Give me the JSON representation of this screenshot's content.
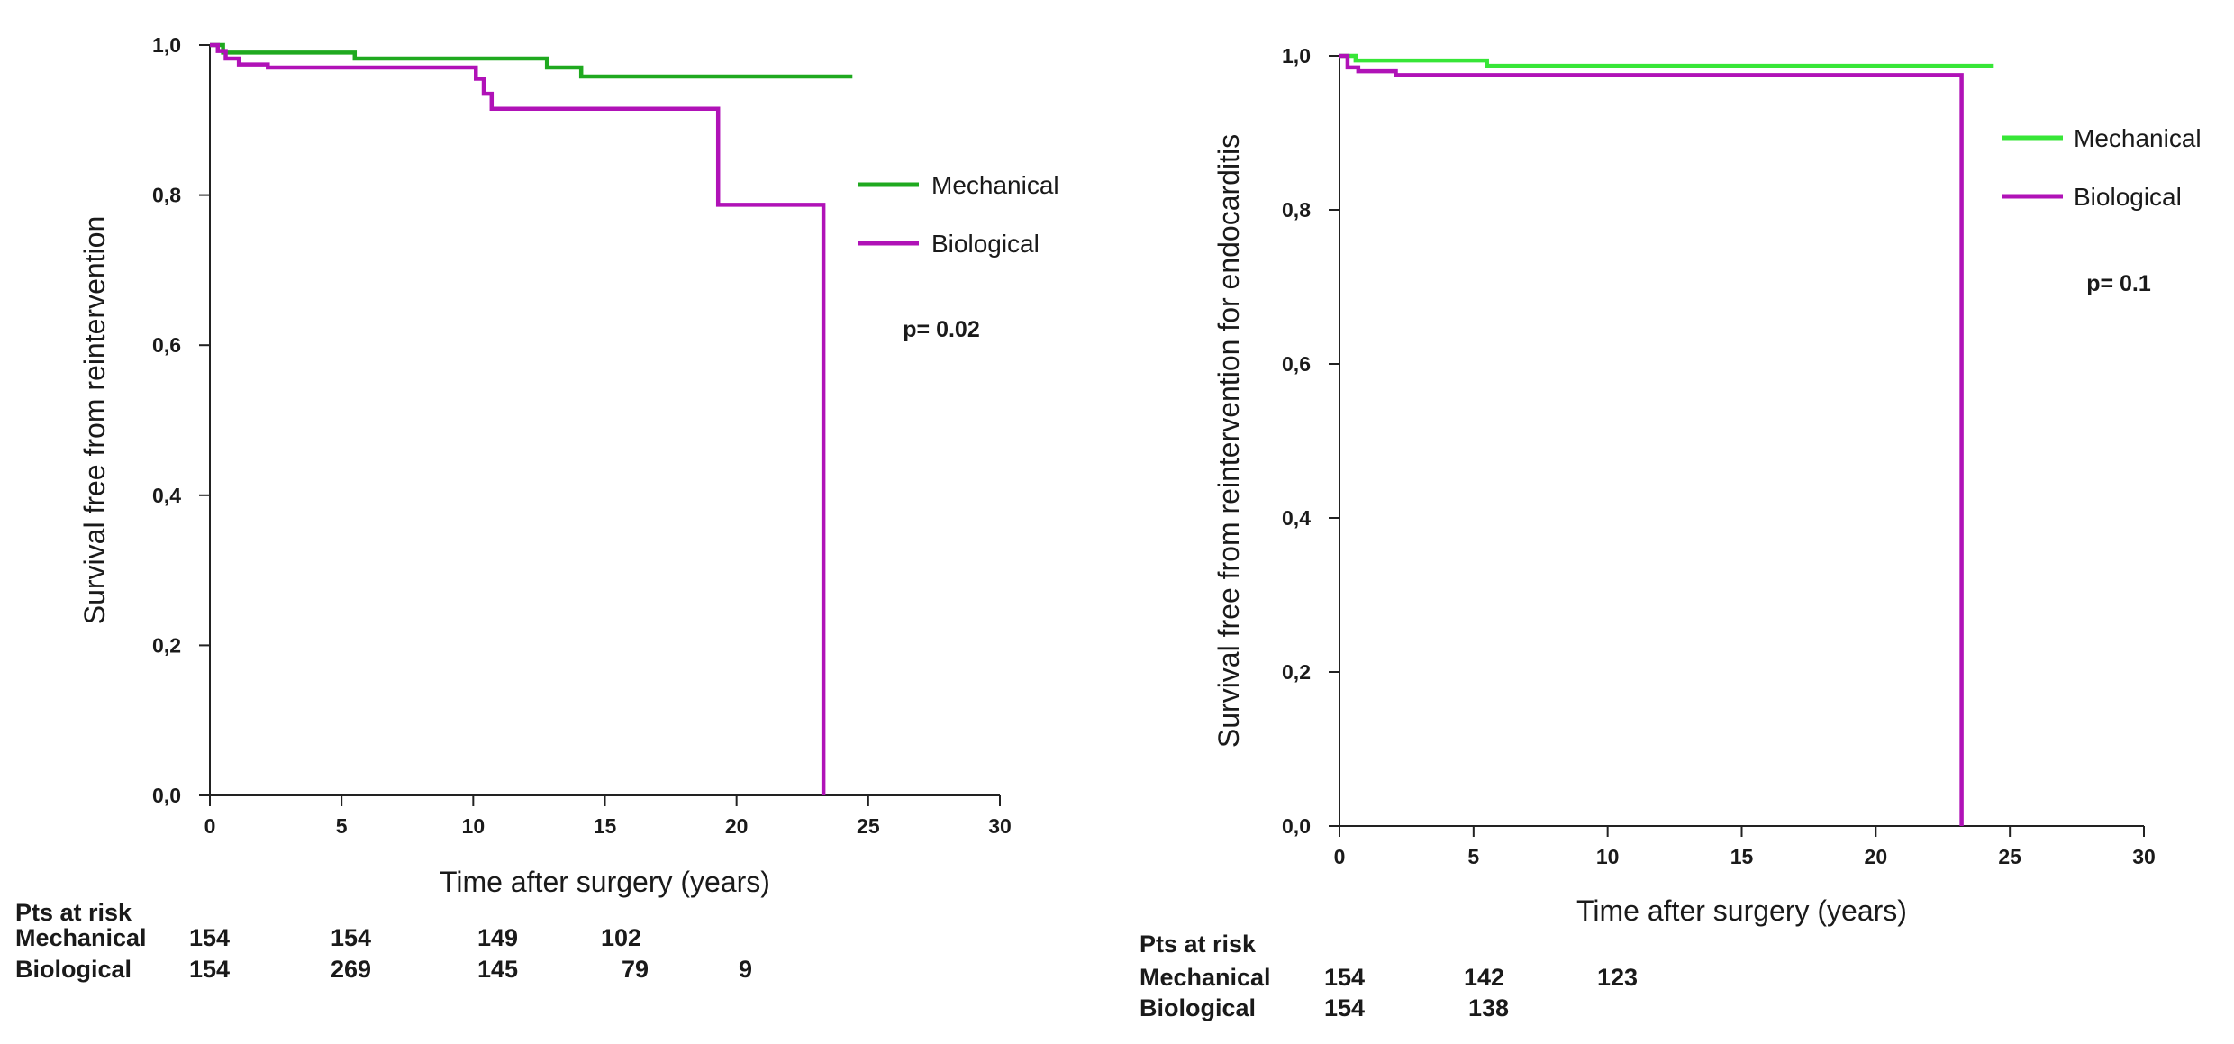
{
  "chart_data": [
    {
      "type": "line",
      "step": true,
      "title": "",
      "xlabel": "Time after surgery (years)",
      "ylabel": "Survival free from reintervention",
      "xlim": [
        0,
        30
      ],
      "ylim": [
        0,
        1
      ],
      "x_ticks": [
        0,
        5,
        10,
        15,
        20,
        25,
        30
      ],
      "y_ticks": [
        0,
        0.2,
        0.4,
        0.6,
        0.8,
        1.0
      ],
      "x_tick_labels": [
        "0",
        "5",
        "10",
        "15",
        "20",
        "25",
        "30"
      ],
      "y_tick_labels": [
        "0,0",
        "0,2",
        "0,4",
        "0,6",
        "0,8",
        "1,0"
      ],
      "grid": false,
      "legend_position": "right",
      "series": [
        {
          "name": "Mechanical",
          "color": "#1fa91f",
          "x": [
            0,
            0.5,
            5.5,
            12.8,
            14.1,
            24.4
          ],
          "y": [
            1.0,
            0.99,
            0.982,
            0.97,
            0.958,
            0.958
          ]
        },
        {
          "name": "Biological",
          "color": "#b012b7",
          "x": [
            0,
            0.3,
            0.6,
            1.1,
            2.2,
            10.1,
            10.4,
            10.7,
            19.3,
            23.3,
            23.3
          ],
          "y": [
            1.0,
            0.992,
            0.982,
            0.974,
            0.97,
            0.955,
            0.935,
            0.915,
            0.787,
            0.787,
            0.0
          ]
        }
      ],
      "annotation": "p= 0.02",
      "risk_table": {
        "title": "Pts at risk",
        "rows": [
          {
            "label": "Mechanical",
            "values": [
              "154",
              "154",
              "149",
              "102"
            ]
          },
          {
            "label": "Biological",
            "values": [
              "154",
              "269",
              "145",
              "79",
              "9"
            ]
          }
        ]
      }
    },
    {
      "type": "line",
      "step": true,
      "title": "",
      "xlabel": "Time after surgery (years)",
      "ylabel": "Survival free from reintervention for endocarditis",
      "xlim": [
        0,
        30
      ],
      "ylim": [
        0,
        1
      ],
      "x_ticks": [
        0,
        5,
        10,
        15,
        20,
        25,
        30
      ],
      "y_ticks": [
        0,
        0.2,
        0.4,
        0.6,
        0.8,
        1.0
      ],
      "x_tick_labels": [
        "0",
        "5",
        "10",
        "15",
        "20",
        "25",
        "30"
      ],
      "y_tick_labels": [
        "0,0",
        "0,2",
        "0,4",
        "0,6",
        "0,8",
        "1,0"
      ],
      "grid": false,
      "legend_position": "right",
      "series": [
        {
          "name": "Mechanical",
          "color": "#37e637",
          "x": [
            0,
            0.6,
            5.5,
            24.4
          ],
          "y": [
            1.0,
            0.994,
            0.987,
            0.987
          ]
        },
        {
          "name": "Biological",
          "color": "#b012b7",
          "x": [
            0,
            0.3,
            0.7,
            2.1,
            23.2,
            23.2
          ],
          "y": [
            1.0,
            0.985,
            0.98,
            0.975,
            0.975,
            0.0
          ]
        }
      ],
      "annotation": "p= 0.1",
      "risk_table": {
        "title": "Pts at risk",
        "rows": [
          {
            "label": "Mechanical",
            "values": [
              "154",
              "142",
              "123"
            ]
          },
          {
            "label": "Biological",
            "values": [
              "154",
              "138"
            ]
          }
        ]
      }
    }
  ]
}
